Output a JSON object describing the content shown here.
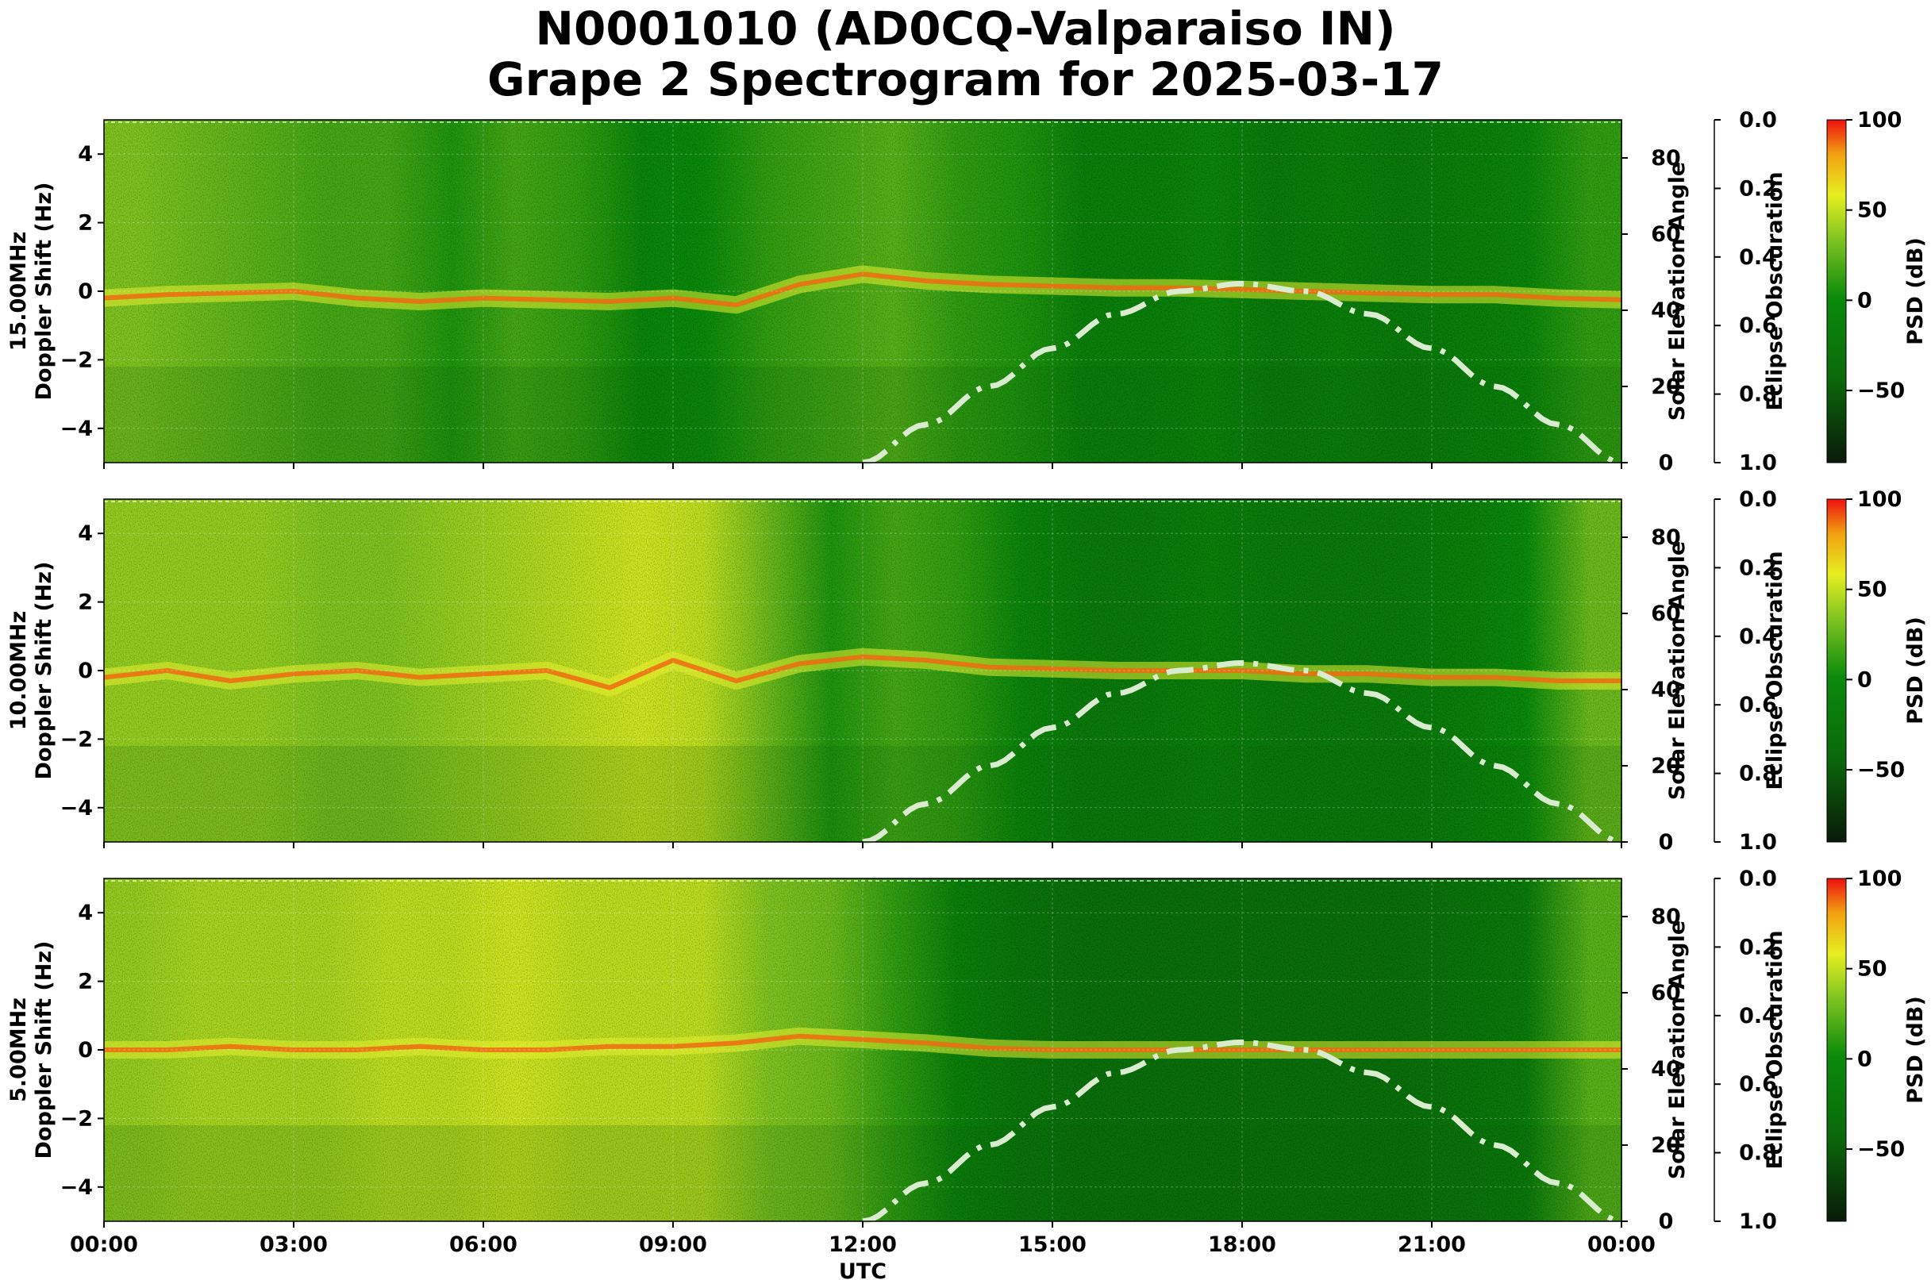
{
  "figure": {
    "title_line1": "N0001010 (AD0CQ-Valparaiso IN)",
    "title_line2": "Grape 2 Spectrogram for 2025-03-17"
  },
  "chart_data": [
    {
      "type": "heatmap",
      "panel_label": "15.00MHz",
      "ylabel": "Doppler Shift (Hz)",
      "ylim": [
        -5,
        5
      ],
      "yticks": [
        "−4",
        "−2",
        "0",
        "2",
        "4"
      ],
      "xlim": [
        "00:00",
        "24:00"
      ],
      "xticks": [
        "00:00",
        "03:00",
        "06:00",
        "09:00",
        "12:00",
        "15:00",
        "18:00",
        "21:00",
        "00:00"
      ],
      "xlabel": "",
      "show_xticks": false,
      "right_axis": {
        "label": "Solar Elevation Angle",
        "ylim": [
          0,
          90
        ],
        "ticks": [
          "0",
          "20",
          "40",
          "60",
          "80"
        ]
      },
      "eclipse_axis": {
        "label": "Eclipse Obscuration",
        "ylim": [
          1.0,
          0.0
        ],
        "ticks": [
          "0.0",
          "0.2",
          "0.4",
          "0.6",
          "0.8",
          "1.0"
        ]
      },
      "colorbar": {
        "label": "PSD (dB)",
        "range": [
          -90,
          100
        ],
        "ticks": [
          "100",
          "50",
          "0",
          "−50"
        ]
      },
      "solar_elevation": {
        "hours": [
          12,
          13,
          14,
          15,
          16,
          17,
          18,
          19,
          20,
          21,
          22,
          23,
          24
        ],
        "degrees": [
          0,
          10,
          20,
          30,
          39,
          45,
          47,
          45,
          39,
          30,
          20,
          10,
          0
        ]
      },
      "background_psd_by_hour": [
        20,
        15,
        10,
        5,
        5,
        -5,
        5,
        0,
        -15,
        -10,
        0,
        5,
        10,
        0,
        -5,
        -20,
        -20,
        -15,
        -25,
        -20,
        -25,
        -20,
        -15,
        0
      ],
      "doppler_trace_hz": [
        -0.2,
        -0.1,
        -0.05,
        0.0,
        -0.2,
        -0.3,
        -0.2,
        -0.25,
        -0.3,
        -0.2,
        -0.4,
        0.2,
        0.5,
        0.3,
        0.2,
        0.15,
        0.1,
        0.1,
        0.05,
        0.0,
        -0.05,
        -0.1,
        -0.1,
        -0.2,
        -0.25
      ]
    },
    {
      "type": "heatmap",
      "panel_label": "10.00MHz",
      "ylabel": "Doppler Shift (Hz)",
      "ylim": [
        -5,
        5
      ],
      "yticks": [
        "−4",
        "−2",
        "0",
        "2",
        "4"
      ],
      "xlim": [
        "00:00",
        "24:00"
      ],
      "xticks": [
        "00:00",
        "03:00",
        "06:00",
        "09:00",
        "12:00",
        "15:00",
        "18:00",
        "21:00",
        "00:00"
      ],
      "xlabel": "",
      "show_xticks": false,
      "right_axis": {
        "label": "Solar Elevation Angle",
        "ylim": [
          0,
          90
        ],
        "ticks": [
          "0",
          "20",
          "40",
          "60",
          "80"
        ]
      },
      "eclipse_axis": {
        "label": "Eclipse Obscuration",
        "ylim": [
          1.0,
          0.0
        ],
        "ticks": [
          "0.0",
          "0.2",
          "0.4",
          "0.6",
          "0.8",
          "1.0"
        ]
      },
      "colorbar": {
        "label": "PSD (dB)",
        "range": [
          -90,
          100
        ],
        "ticks": [
          "100",
          "50",
          "0",
          "−50"
        ]
      },
      "solar_elevation": {
        "hours": [
          12,
          13,
          14,
          15,
          16,
          17,
          18,
          19,
          20,
          21,
          22,
          23,
          24
        ],
        "degrees": [
          0,
          10,
          20,
          30,
          39,
          45,
          47,
          45,
          39,
          30,
          20,
          10,
          0
        ]
      },
      "background_psd_by_hour": [
        25,
        25,
        25,
        20,
        20,
        25,
        30,
        35,
        40,
        35,
        15,
        -5,
        5,
        0,
        -15,
        -25,
        -25,
        -20,
        -25,
        -25,
        -25,
        -20,
        -10,
        15
      ],
      "doppler_trace_hz": [
        -0.2,
        0.0,
        -0.3,
        -0.1,
        0.0,
        -0.2,
        -0.1,
        0.0,
        -0.5,
        0.3,
        -0.3,
        0.2,
        0.4,
        0.3,
        0.1,
        0.05,
        0.0,
        0.0,
        0.0,
        -0.1,
        -0.1,
        -0.2,
        -0.2,
        -0.3,
        -0.3
      ]
    },
    {
      "type": "heatmap",
      "panel_label": "5.00MHz",
      "ylabel": "Doppler Shift (Hz)",
      "ylim": [
        -5,
        5
      ],
      "yticks": [
        "−4",
        "−2",
        "0",
        "2",
        "4"
      ],
      "xlim": [
        "00:00",
        "24:00"
      ],
      "xticks": [
        "00:00",
        "03:00",
        "06:00",
        "09:00",
        "12:00",
        "15:00",
        "18:00",
        "21:00",
        "00:00"
      ],
      "xlabel": "UTC",
      "show_xticks": true,
      "right_axis": {
        "label": "Solar Elevation Angle",
        "ylim": [
          0,
          90
        ],
        "ticks": [
          "0",
          "20",
          "40",
          "60",
          "80"
        ]
      },
      "eclipse_axis": {
        "label": "Eclipse Obscuration",
        "ylim": [
          1.0,
          0.0
        ],
        "ticks": [
          "0.0",
          "0.2",
          "0.4",
          "0.6",
          "0.8",
          "1.0"
        ]
      },
      "colorbar": {
        "label": "PSD (dB)",
        "range": [
          -90,
          100
        ],
        "ticks": [
          "100",
          "50",
          "0",
          "−50"
        ]
      },
      "solar_elevation": {
        "hours": [
          12,
          13,
          14,
          15,
          16,
          17,
          18,
          19,
          20,
          21,
          22,
          23,
          24
        ],
        "degrees": [
          0,
          10,
          20,
          30,
          39,
          45,
          47,
          45,
          39,
          30,
          20,
          10,
          0
        ]
      },
      "background_psd_by_hour": [
        25,
        30,
        30,
        30,
        35,
        35,
        40,
        35,
        35,
        35,
        20,
        15,
        0,
        -20,
        -30,
        -35,
        -35,
        -35,
        -35,
        -35,
        -35,
        -30,
        -25,
        10
      ],
      "doppler_trace_hz": [
        0.0,
        0.0,
        0.1,
        0.0,
        0.0,
        0.1,
        0.0,
        0.0,
        0.1,
        0.1,
        0.2,
        0.4,
        0.3,
        0.2,
        0.05,
        0.0,
        0.0,
        0.0,
        0.0,
        0.0,
        0.0,
        0.0,
        0.0,
        0.0,
        0.0
      ]
    }
  ]
}
